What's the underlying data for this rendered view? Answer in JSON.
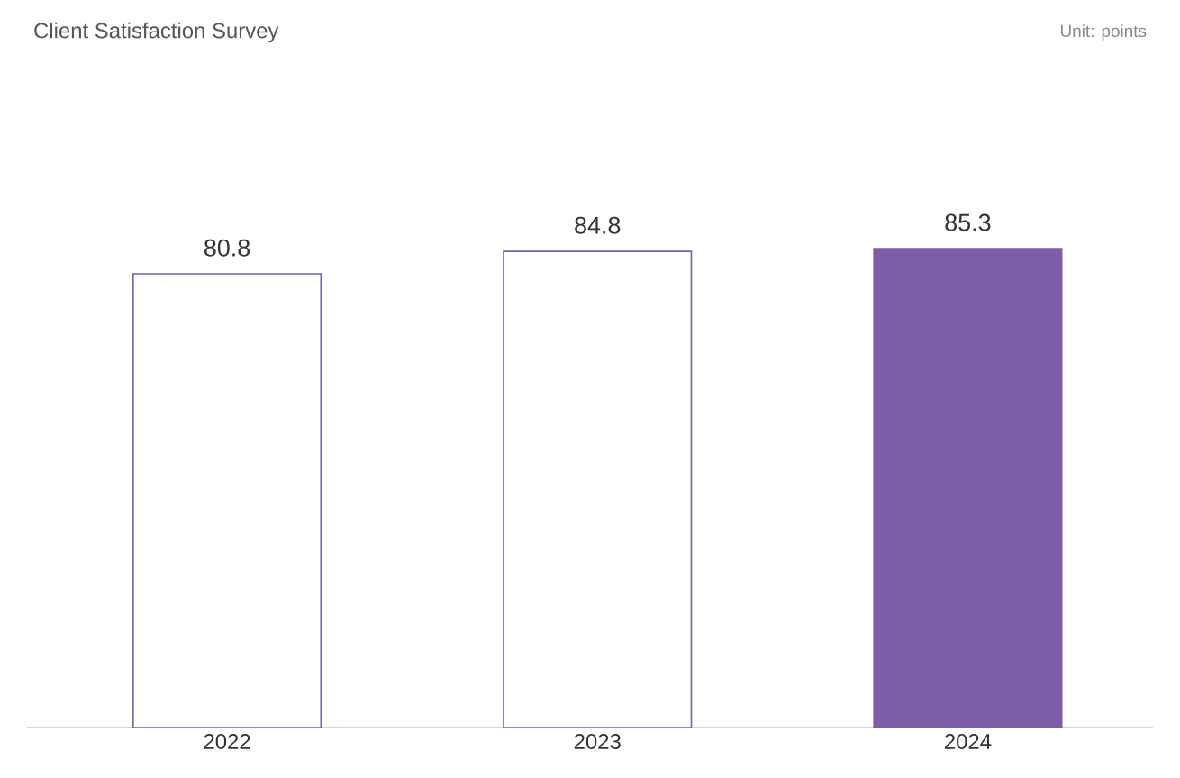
{
  "chart_data": {
    "type": "bar",
    "title": "Client Satisfaction Survey",
    "annotations": [
      "Unit: points"
    ],
    "categories": [
      "2022",
      "2023",
      "2024"
    ],
    "values": [
      80.8,
      84.8,
      85.3
    ],
    "colors": [
      "#ffffff",
      "#ffffff",
      "#7b5ea7"
    ],
    "color": "#7b5ea7",
    "data_labels": true
  }
}
